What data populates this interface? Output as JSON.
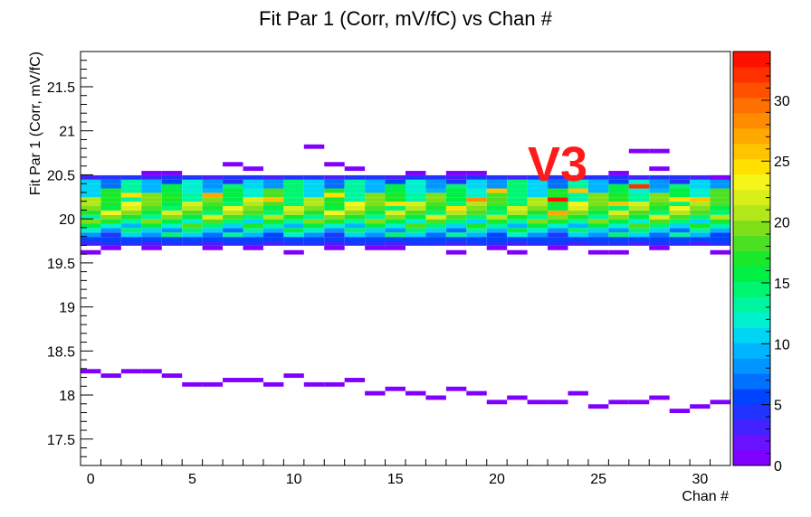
{
  "chart_data": {
    "type": "heatmap",
    "title": "Fit Par 1 (Corr, mV/fC) vs Chan #",
    "xlabel": "Chan #",
    "ylabel": "Fit Par 1 (Corr, mV/fC)",
    "xlim": [
      -0.5,
      31.5
    ],
    "ylim": [
      17.2,
      21.9
    ],
    "x_ticks": [
      0,
      5,
      10,
      15,
      20,
      25,
      30
    ],
    "y_ticks": [
      17.5,
      18,
      18.5,
      19,
      19.5,
      20,
      20.5,
      21,
      21.5
    ],
    "y_bin_width": 0.05,
    "z_range": [
      0,
      34
    ],
    "z_ticks": [
      0,
      5,
      10,
      15,
      20,
      25,
      30
    ],
    "palette": [
      "#7f00ff",
      "#6a11ff",
      "#4422ff",
      "#2233ff",
      "#0044ff",
      "#0070ff",
      "#0095ff",
      "#00b5ff",
      "#00d5f5",
      "#00f0d0",
      "#00f5a0",
      "#00f570",
      "#00ef45",
      "#1ae82a",
      "#4ce022",
      "#7fe01a",
      "#b2e81a",
      "#d9ef1a",
      "#f5f51a",
      "#ffe000",
      "#ffc400",
      "#ffa800",
      "#ff8c00",
      "#ff7000",
      "#ff5000",
      "#ff3000",
      "#ff1000"
    ],
    "annotation": "V3",
    "annotation_color": "#ff1a1a",
    "low_cluster_y": [
      18.27,
      18.22,
      18.27,
      18.27,
      18.22,
      18.12,
      18.12,
      18.17,
      18.17,
      18.12,
      18.22,
      18.12,
      18.12,
      18.17,
      18.02,
      18.07,
      18.02,
      17.97,
      18.07,
      18.02,
      17.92,
      17.97,
      17.92,
      17.92,
      18.02,
      17.87,
      17.92,
      17.92,
      17.97,
      17.82,
      17.87,
      17.92
    ],
    "sparse_bins": [
      [
        0,
        19.62
      ],
      [
        1,
        19.67
      ],
      [
        3,
        19.67
      ],
      [
        6,
        19.67
      ],
      [
        8,
        19.67
      ],
      [
        10,
        19.62
      ],
      [
        12,
        19.67
      ],
      [
        14,
        19.67
      ],
      [
        15,
        19.67
      ],
      [
        18,
        19.62
      ],
      [
        20,
        19.67
      ],
      [
        21,
        19.62
      ],
      [
        23,
        19.67
      ],
      [
        25,
        19.62
      ],
      [
        26,
        19.62
      ],
      [
        28,
        19.67
      ],
      [
        31,
        19.62
      ],
      [
        11,
        20.82
      ],
      [
        12,
        20.62
      ],
      [
        7,
        20.62
      ],
      [
        27,
        20.77
      ],
      [
        28,
        20.77
      ],
      [
        3,
        20.52
      ],
      [
        4,
        20.52
      ],
      [
        8,
        20.57
      ],
      [
        13,
        20.57
      ],
      [
        18,
        20.52
      ],
      [
        28,
        20.57
      ],
      [
        26,
        20.52
      ],
      [
        31,
        20.47
      ],
      [
        16,
        20.52
      ],
      [
        19,
        20.52
      ]
    ],
    "hot_bins": [
      [
        6,
        20.27,
        27
      ],
      [
        9,
        20.22,
        26
      ],
      [
        19,
        20.22,
        28
      ],
      [
        20,
        20.32,
        26
      ],
      [
        23,
        20.22,
        33
      ],
      [
        23,
        20.07,
        27
      ],
      [
        24,
        20.32,
        26
      ],
      [
        26,
        20.17,
        26
      ],
      [
        27,
        20.37,
        32
      ],
      [
        30,
        20.22,
        26
      ],
      [
        18,
        20.12,
        25
      ],
      [
        12,
        20.27,
        25
      ],
      [
        15,
        20.17,
        25
      ],
      [
        2,
        20.27,
        25
      ],
      [
        29,
        20.22,
        25
      ]
    ]
  }
}
